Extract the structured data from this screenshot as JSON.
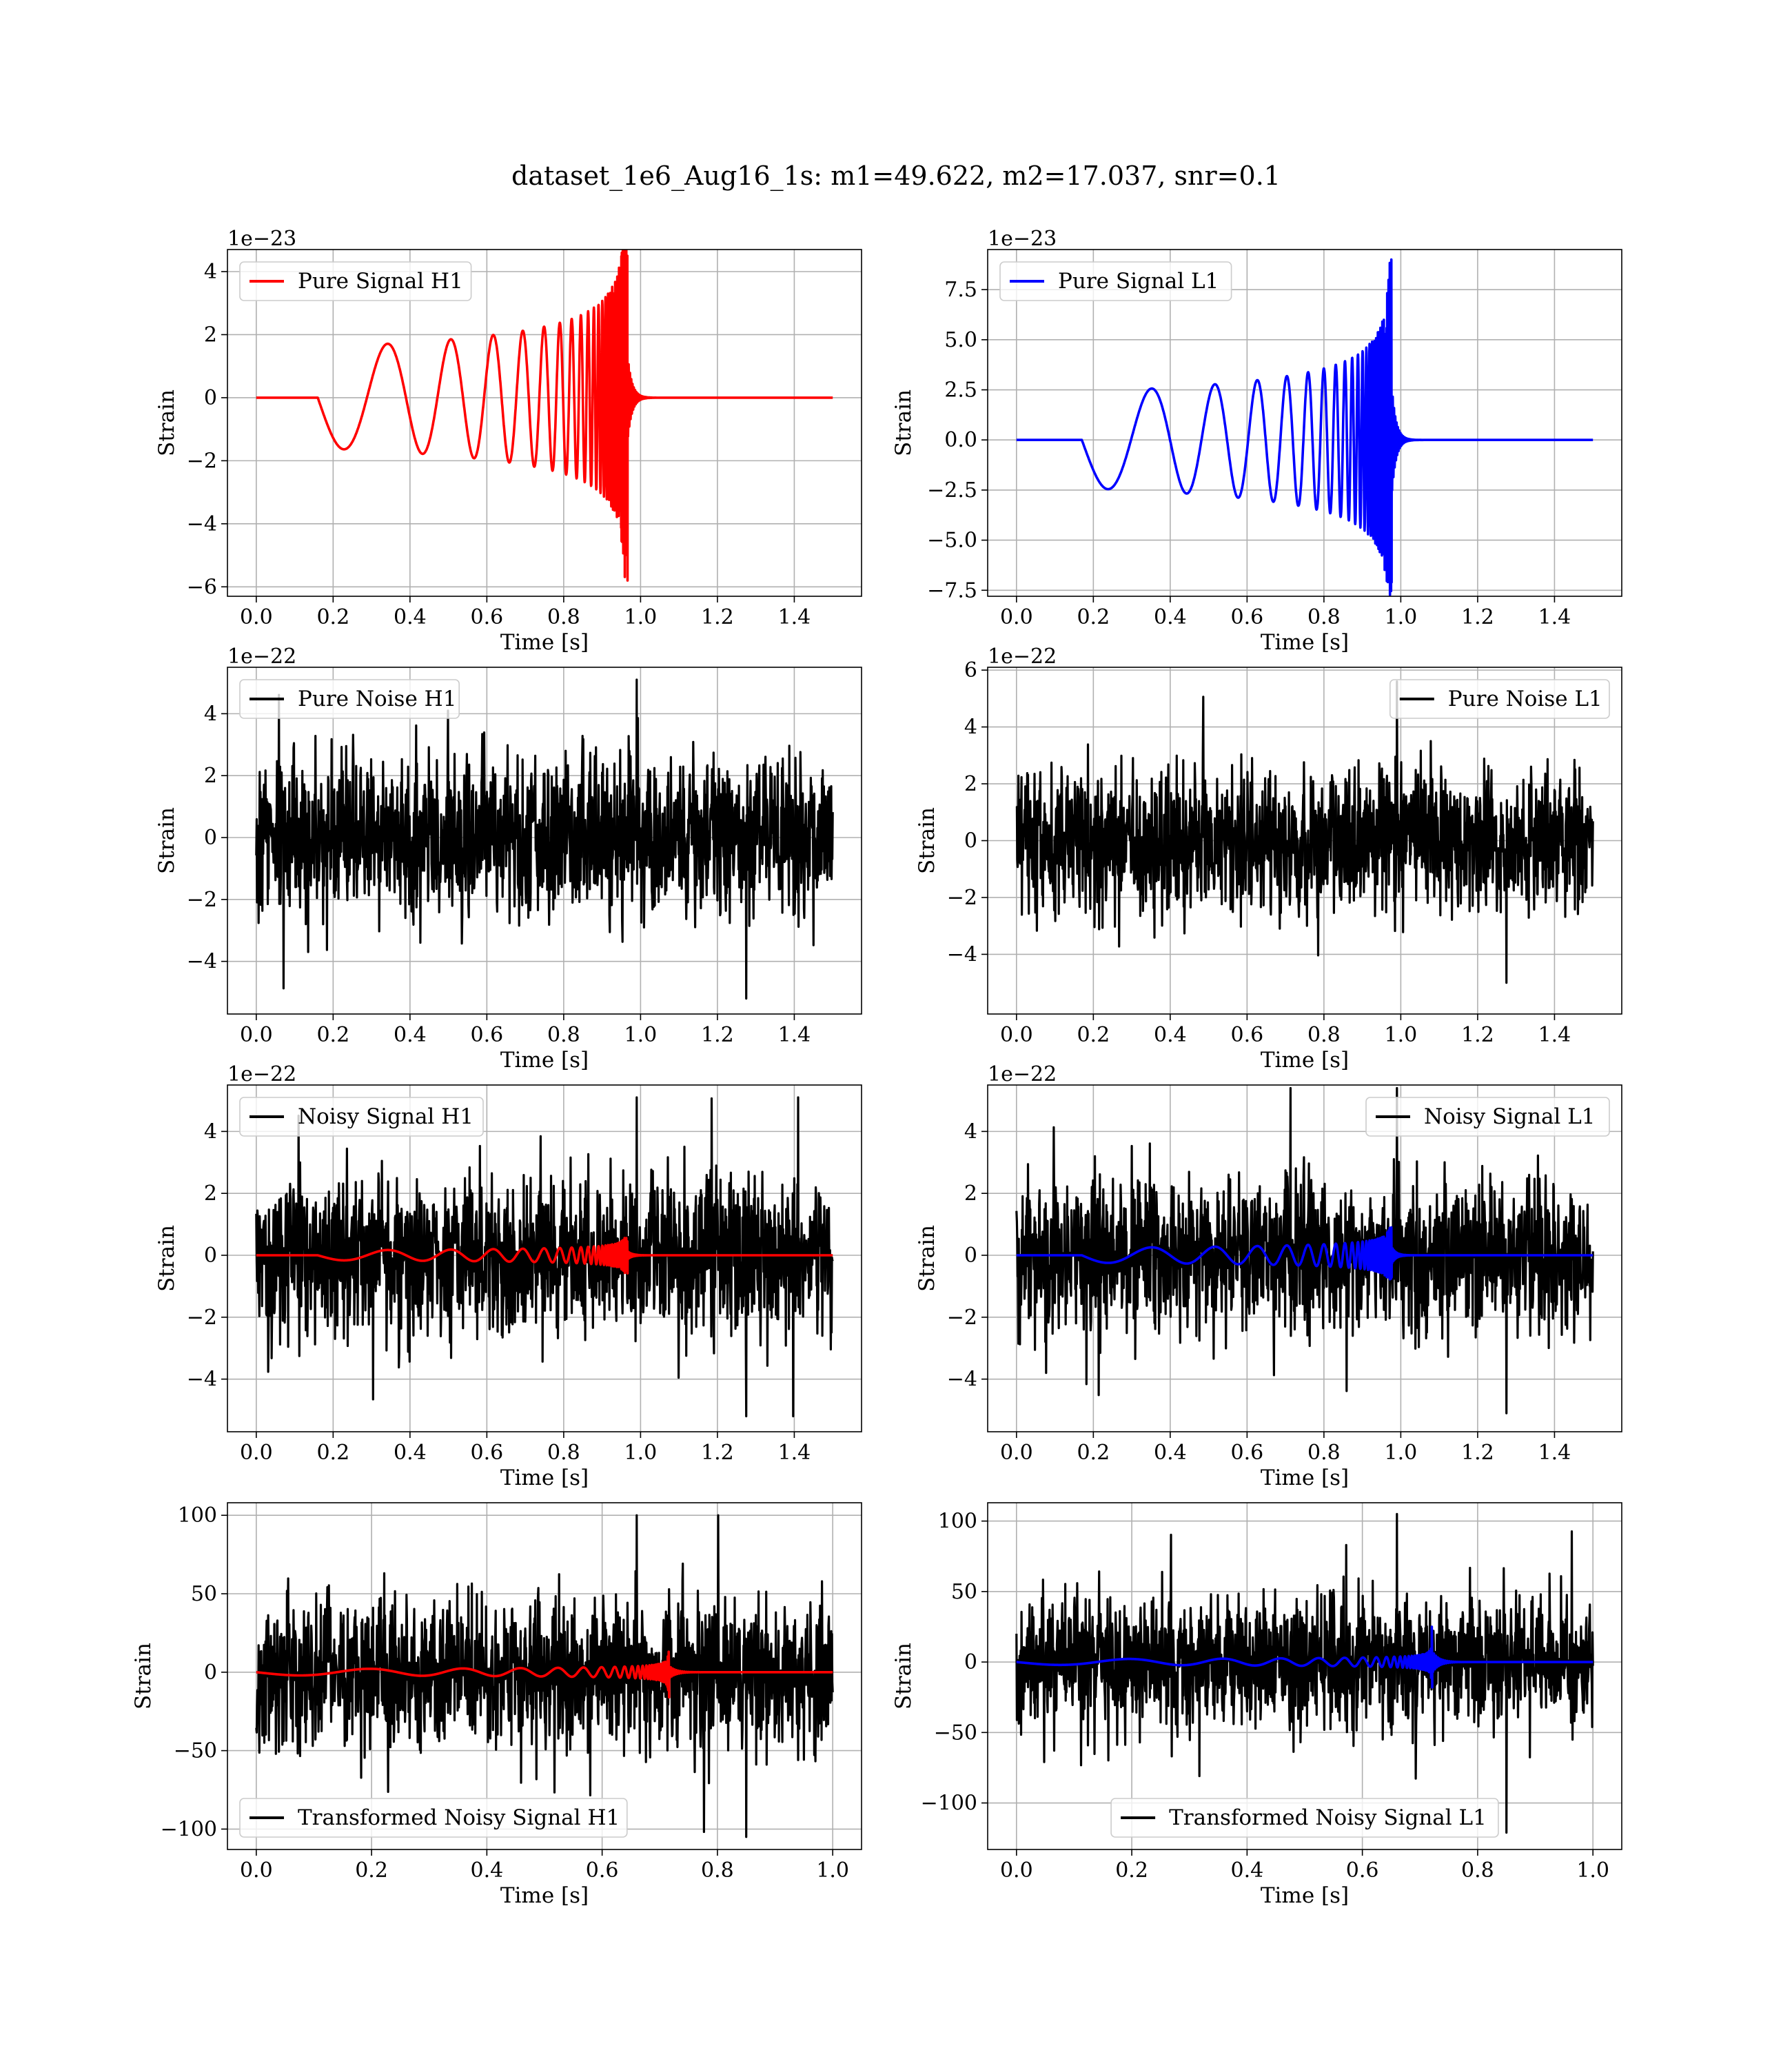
{
  "title": "dataset_1e6_Aug16_1s: m1=49.622, m2=17.037, snr=0.1",
  "colors": {
    "h1_signal": "#ff0000",
    "l1_signal": "#0000ff",
    "noise": "#000000",
    "grid": "#b0b0b0"
  },
  "chart_data": [
    {
      "type": "line",
      "title": "",
      "xlabel": "Time [s]",
      "ylabel": "Strain",
      "offset_text": "1e−23",
      "xlim": [
        -0.075,
        1.575
      ],
      "ylim": [
        -6.3,
        4.7
      ],
      "xticks": [
        0.0,
        0.2,
        0.4,
        0.6,
        0.8,
        1.0,
        1.2,
        1.4
      ],
      "xtick_labels": [
        "0.0",
        "0.2",
        "0.4",
        "0.6",
        "0.8",
        "1.0",
        "1.2",
        "1.4"
      ],
      "yticks": [
        -6,
        -4,
        -2,
        0,
        2,
        4
      ],
      "ytick_labels": [
        "−6",
        "−4",
        "−2",
        "0",
        "2",
        "4"
      ],
      "grid": true,
      "legend_position": "upper left",
      "series": [
        {
          "name": "Pure Signal H1",
          "kind": "chirp",
          "color": "#ff0000",
          "t_start": 0.16,
          "t_merge": 0.965,
          "t_end": 1.5,
          "peak_amplitude_early": 1.6,
          "peak_max": 4.5,
          "peak_min": -5.8
        }
      ]
    },
    {
      "type": "line",
      "title": "",
      "xlabel": "Time [s]",
      "ylabel": "Strain",
      "offset_text": "1e−23",
      "xlim": [
        -0.075,
        1.575
      ],
      "ylim": [
        -7.8,
        9.5
      ],
      "xticks": [
        0.0,
        0.2,
        0.4,
        0.6,
        0.8,
        1.0,
        1.2,
        1.4
      ],
      "xtick_labels": [
        "0.0",
        "0.2",
        "0.4",
        "0.6",
        "0.8",
        "1.0",
        "1.2",
        "1.4"
      ],
      "yticks": [
        -7.5,
        -5.0,
        -2.5,
        0.0,
        2.5,
        5.0,
        7.5
      ],
      "ytick_labels": [
        "−7.5",
        "−5.0",
        "−2.5",
        "0.0",
        "2.5",
        "5.0",
        "7.5"
      ],
      "grid": true,
      "legend_position": "upper left",
      "series": [
        {
          "name": "Pure Signal L1",
          "kind": "chirp",
          "color": "#0000ff",
          "t_start": 0.17,
          "t_merge": 0.975,
          "t_end": 1.5,
          "peak_amplitude_early": 2.4,
          "peak_max": 9.0,
          "peak_min": -7.1
        }
      ]
    },
    {
      "type": "line",
      "title": "",
      "xlabel": "Time [s]",
      "ylabel": "Strain",
      "offset_text": "1e−22",
      "xlim": [
        -0.075,
        1.575
      ],
      "ylim": [
        -5.7,
        5.5
      ],
      "xticks": [
        0.0,
        0.2,
        0.4,
        0.6,
        0.8,
        1.0,
        1.2,
        1.4
      ],
      "xtick_labels": [
        "0.0",
        "0.2",
        "0.4",
        "0.6",
        "0.8",
        "1.0",
        "1.2",
        "1.4"
      ],
      "yticks": [
        -4,
        -2,
        0,
        2,
        4
      ],
      "ytick_labels": [
        "−4",
        "−2",
        "0",
        "2",
        "4"
      ],
      "grid": true,
      "legend_position": "upper left",
      "series": [
        {
          "name": "Pure Noise H1",
          "kind": "noise",
          "color": "#000000",
          "t_start": 0.0,
          "t_end": 1.5,
          "typical_amplitude": 2.2,
          "max": 5.1,
          "min": -5.2
        }
      ]
    },
    {
      "type": "line",
      "title": "",
      "xlabel": "Time [s]",
      "ylabel": "Strain",
      "offset_text": "1e−22",
      "xlim": [
        -0.075,
        1.575
      ],
      "ylim": [
        -6.1,
        6.1
      ],
      "xticks": [
        0.0,
        0.2,
        0.4,
        0.6,
        0.8,
        1.0,
        1.2,
        1.4
      ],
      "xtick_labels": [
        "0.0",
        "0.2",
        "0.4",
        "0.6",
        "0.8",
        "1.0",
        "1.2",
        "1.4"
      ],
      "yticks": [
        -4,
        -2,
        0,
        2,
        4,
        6
      ],
      "ytick_labels": [
        "−4",
        "−2",
        "0",
        "2",
        "4",
        "6"
      ],
      "grid": true,
      "legend_position": "upper right",
      "series": [
        {
          "name": "Pure Noise L1",
          "kind": "noise",
          "color": "#000000",
          "t_start": 0.0,
          "t_end": 1.5,
          "typical_amplitude": 2.2,
          "max": 5.6,
          "min": -5.0
        }
      ]
    },
    {
      "type": "line",
      "title": "",
      "xlabel": "Time [s]",
      "ylabel": "Strain",
      "offset_text": "1e−22",
      "xlim": [
        -0.075,
        1.575
      ],
      "ylim": [
        -5.7,
        5.5
      ],
      "xticks": [
        0.0,
        0.2,
        0.4,
        0.6,
        0.8,
        1.0,
        1.2,
        1.4
      ],
      "xtick_labels": [
        "0.0",
        "0.2",
        "0.4",
        "0.6",
        "0.8",
        "1.0",
        "1.2",
        "1.4"
      ],
      "yticks": [
        -4,
        -2,
        0,
        2,
        4
      ],
      "ytick_labels": [
        "−4",
        "−2",
        "0",
        "2",
        "4"
      ],
      "grid": true,
      "legend_position": "upper left",
      "series": [
        {
          "name": "Noisy Signal H1",
          "kind": "noise",
          "color": "#000000",
          "t_start": 0.0,
          "t_end": 1.5,
          "typical_amplitude": 2.2,
          "max": 5.1,
          "min": -5.2
        },
        {
          "name": "",
          "kind": "chirp",
          "color": "#ff0000",
          "t_start": 0.16,
          "t_merge": 0.965,
          "t_end": 1.5,
          "peak_amplitude_early": 0.16,
          "peak_max": 0.45,
          "peak_min": -0.58
        }
      ]
    },
    {
      "type": "line",
      "title": "",
      "xlabel": "Time [s]",
      "ylabel": "Strain",
      "offset_text": "1e−22",
      "xlim": [
        -0.075,
        1.575
      ],
      "ylim": [
        -5.7,
        5.5
      ],
      "xticks": [
        0.0,
        0.2,
        0.4,
        0.6,
        0.8,
        1.0,
        1.2,
        1.4
      ],
      "xtick_labels": [
        "0.0",
        "0.2",
        "0.4",
        "0.6",
        "0.8",
        "1.0",
        "1.2",
        "1.4"
      ],
      "yticks": [
        -4,
        -2,
        0,
        2,
        4
      ],
      "ytick_labels": [
        "−4",
        "−2",
        "0",
        "2",
        "4"
      ],
      "grid": true,
      "legend_position": "upper right",
      "series": [
        {
          "name": "Noisy Signal L1",
          "kind": "noise",
          "color": "#000000",
          "t_start": 0.0,
          "t_end": 1.5,
          "typical_amplitude": 2.2,
          "max": 5.4,
          "min": -5.1
        },
        {
          "name": "",
          "kind": "chirp",
          "color": "#0000ff",
          "t_start": 0.17,
          "t_merge": 0.975,
          "t_end": 1.5,
          "peak_amplitude_early": 0.24,
          "peak_max": 0.9,
          "peak_min": -0.71
        }
      ]
    },
    {
      "type": "line",
      "title": "",
      "xlabel": "Time [s]",
      "ylabel": "Strain",
      "offset_text": "",
      "xlim": [
        -0.05,
        1.05
      ],
      "ylim": [
        -113,
        108
      ],
      "xticks": [
        0.0,
        0.2,
        0.4,
        0.6,
        0.8,
        1.0
      ],
      "xtick_labels": [
        "0.0",
        "0.2",
        "0.4",
        "0.6",
        "0.8",
        "1.0"
      ],
      "yticks": [
        -100,
        -50,
        0,
        50,
        100
      ],
      "ytick_labels": [
        "−100",
        "−50",
        "0",
        "50",
        "100"
      ],
      "grid": true,
      "legend_position": "lower left",
      "series": [
        {
          "name": "Transformed Noisy Signal H1",
          "kind": "noise",
          "color": "#000000",
          "t_start": 0.0,
          "t_end": 1.0,
          "typical_amplitude": 42,
          "max": 100,
          "min": -105
        },
        {
          "name": "",
          "kind": "chirp",
          "color": "#ff0000",
          "t_start": 0.0,
          "t_merge": 0.715,
          "t_end": 1.0,
          "peak_amplitude_early": 2.0,
          "peak_max": 13,
          "peak_min": -16
        }
      ]
    },
    {
      "type": "line",
      "title": "",
      "xlabel": "Time [s]",
      "ylabel": "Strain",
      "offset_text": "",
      "xlim": [
        -0.05,
        1.05
      ],
      "ylim": [
        -133,
        113
      ],
      "xticks": [
        0.0,
        0.2,
        0.4,
        0.6,
        0.8,
        1.0
      ],
      "xtick_labels": [
        "0.0",
        "0.2",
        "0.4",
        "0.6",
        "0.8",
        "1.0"
      ],
      "yticks": [
        -100,
        -50,
        0,
        50,
        100
      ],
      "ytick_labels": [
        "−100",
        "−50",
        "0",
        "50",
        "100"
      ],
      "grid": true,
      "legend_position": "lower center",
      "series": [
        {
          "name": "Transformed Noisy Signal L1",
          "kind": "noise",
          "color": "#000000",
          "t_start": 0.0,
          "t_end": 1.0,
          "typical_amplitude": 42,
          "max": 105,
          "min": -121
        },
        {
          "name": "",
          "kind": "chirp",
          "color": "#0000ff",
          "t_start": 0.0,
          "t_merge": 0.72,
          "t_end": 1.0,
          "peak_amplitude_early": 2.0,
          "peak_max": 25,
          "peak_min": -18
        }
      ]
    }
  ]
}
